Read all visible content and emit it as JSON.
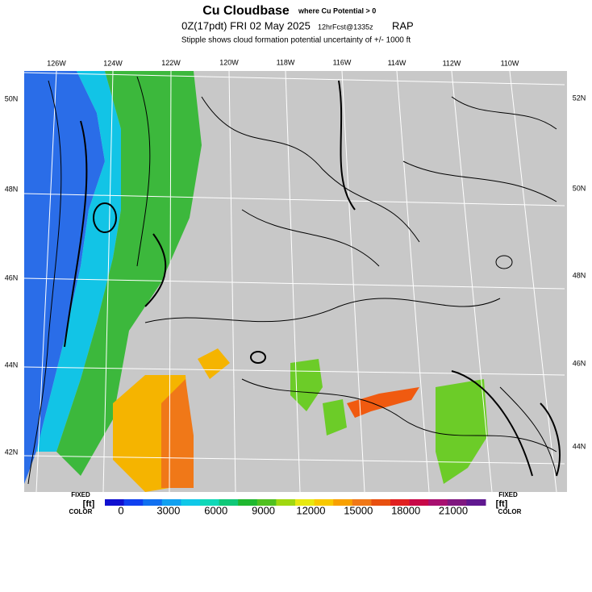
{
  "header": {
    "title": "Cu Cloudbase",
    "title_note": "where Cu Potential > 0",
    "valid": "0Z(17pdt) FRI 02 May 2025",
    "forecast": "12hrFcst@1335z",
    "model": "RAP",
    "subtitle": "Stipple shows cloud formation potential uncertainty of +/- 1000 ft"
  },
  "map": {
    "longitude_labels": [
      "126W",
      "124W",
      "122W",
      "120W",
      "118W",
      "116W",
      "114W",
      "112W",
      "110W"
    ],
    "left_latitude_labels": [
      "50N",
      "48N",
      "46N",
      "44N",
      "42N"
    ],
    "right_latitude_labels": [
      "52N",
      "50N",
      "48N",
      "46N",
      "44N"
    ]
  },
  "legend": {
    "ticks": [
      0,
      3000,
      6000,
      9000,
      12000,
      15000,
      18000,
      21000
    ],
    "left": {
      "top": "FIXED",
      "unit": "[ft]",
      "bottom": "COLOR"
    },
    "right": {
      "top": "FIXED",
      "unit": "[ft]",
      "bottom": "COLOR"
    }
  }
}
